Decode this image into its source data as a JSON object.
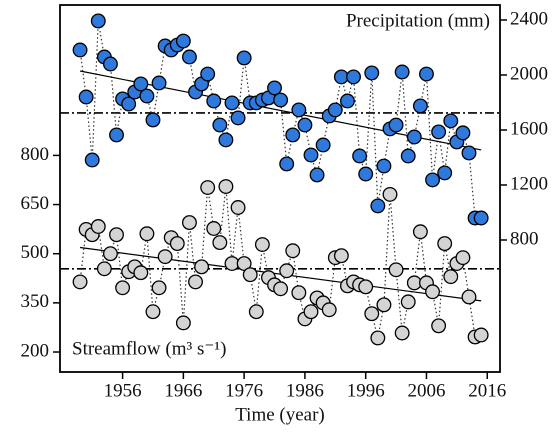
{
  "chart_data": {
    "type": "scatter",
    "x_label": "Time (year)",
    "x": [
      1949,
      1950,
      1951,
      1952,
      1953,
      1954,
      1955,
      1956,
      1957,
      1958,
      1959,
      1960,
      1961,
      1962,
      1963,
      1964,
      1965,
      1966,
      1967,
      1968,
      1969,
      1970,
      1971,
      1972,
      1973,
      1974,
      1975,
      1976,
      1977,
      1978,
      1979,
      1980,
      1981,
      1982,
      1983,
      1984,
      1985,
      1986,
      1987,
      1988,
      1989,
      1990,
      1991,
      1992,
      1993,
      1994,
      1995,
      1996,
      1997,
      1998,
      1999,
      2000,
      2001,
      2002,
      2003,
      2004,
      2005,
      2006,
      2007,
      2008,
      2009,
      2010,
      2011,
      2012,
      2013,
      2014,
      2015
    ],
    "xlim": [
      1945.7,
      2018.1
    ],
    "xticks": [
      1956,
      1966,
      1976,
      1986,
      1996,
      2006,
      2016
    ],
    "ylim": [
      139,
      1259
    ],
    "yticks": [
      200,
      350,
      500,
      650,
      800
    ],
    "y2lim": [
      -160,
      2509
    ],
    "y2ticks": [
      800,
      1200,
      1600,
      2000,
      2400
    ],
    "series": [
      {
        "name": "Streamflow (m³ s⁻¹)",
        "color": "#d4d4d4",
        "label_color": "#111111",
        "axis": "y",
        "values": [
          414,
          574,
          558,
          583,
          454,
          500,
          558,
          396,
          445,
          460,
          442,
          561,
          323,
          396,
          491,
          549,
          531,
          289,
          595,
          414,
          460,
          702,
          577,
          534,
          705,
          470,
          641,
          470,
          436,
          323,
          528,
          427,
          405,
          393,
          448,
          509,
          381,
          301,
          323,
          365,
          350,
          329,
          488,
          494,
          402,
          414,
          405,
          399,
          317,
          243,
          344,
          681,
          451,
          258,
          353,
          411,
          567,
          411,
          384,
          280,
          531,
          430,
          470,
          488,
          368,
          246,
          252
        ],
        "trend": [
          519,
          356
        ],
        "mean": 454
      },
      {
        "name": "Precipitation (mm)",
        "color": "#2f78dc",
        "label_color": "#2a5da8",
        "axis": "y2",
        "values": [
          2182,
          1840,
          1382,
          2393,
          2131,
          2080,
          1564,
          1826,
          1789,
          1876,
          1935,
          1847,
          1673,
          1942,
          2211,
          2182,
          2218,
          2247,
          2131,
          1876,
          1935,
          2007,
          1811,
          1636,
          1528,
          1797,
          1688,
          2124,
          1797,
          1797,
          1818,
          1833,
          1906,
          1818,
          1353,
          1564,
          1746,
          1636,
          1418,
          1273,
          1491,
          1702,
          1746,
          1986,
          1811,
          1986,
          1411,
          1280,
          2015,
          1048,
          1338,
          1608,
          1636,
          2022,
          1411,
          1549,
          1775,
          2007,
          1237,
          1586,
          1288,
          1666,
          1513,
          1579,
          1433,
          960,
          960
        ],
        "trend": [
          2029,
          1455
        ],
        "mean": 1724
      }
    ]
  }
}
